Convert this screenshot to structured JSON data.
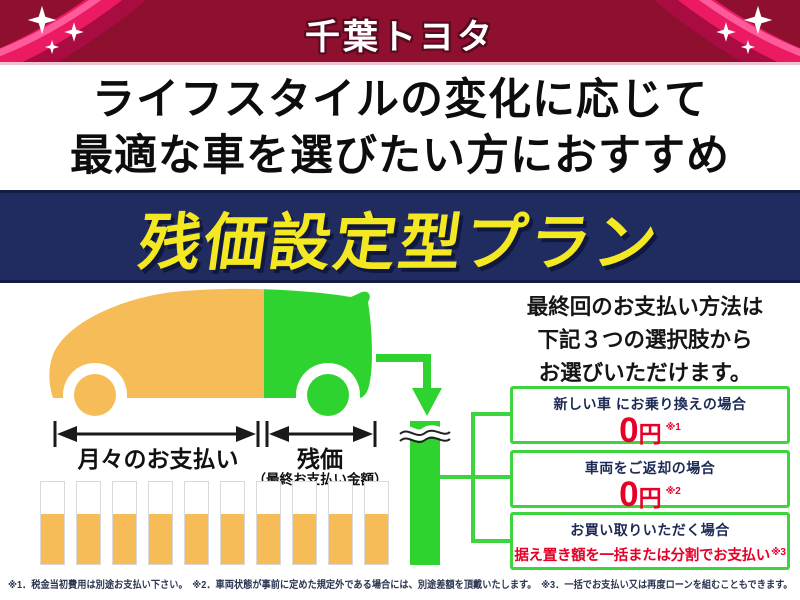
{
  "header": {
    "brand": "千葉トヨタ"
  },
  "headline": {
    "line1": "ライフスタイルの変化に応じて",
    "line2": "最適な車を選びたい方におすすめ"
  },
  "banner": {
    "title": "残価設定型プラン"
  },
  "diagram": {
    "monthly_label": "月々のお支払い",
    "residual_label": "残価",
    "residual_sublabel": "（最終お支払い金額）",
    "bars": {
      "count": 10,
      "fill_percent": 61
    }
  },
  "payment_intro": {
    "line1": "最終回のお支払い方法は",
    "line2": "下記３つの選択肢から",
    "line3": "お選びいただけます。"
  },
  "options": [
    {
      "title": "新しい車 にお乗り換えの場合",
      "amount": "0",
      "unit": "円",
      "ref": "※1"
    },
    {
      "title": "車両をご返却の場合",
      "amount": "0",
      "unit": "円",
      "ref": "※2"
    },
    {
      "title": "お買い取りいただく場合",
      "detail": "据え置き額を一括または分割でお支払い",
      "ref": "※3"
    }
  ],
  "footnote": "※1．税金当初費用は別途お支払い下さい。　※2．車両状態が事前に定めた規定外である場合には、別途差額を頂戴いたします。　※3．一括でお支払い又は再度ローンを組むこともできます。",
  "colors": {
    "header_bg": "#8e0f2e",
    "ribbon_pink": "#ec1a62",
    "banner_bg": "#202b60",
    "banner_text": "#f4e822",
    "orange": "#f6bc57",
    "green": "#2fd32f",
    "accent_red": "#e60027",
    "navy_text": "#1c2a55"
  }
}
